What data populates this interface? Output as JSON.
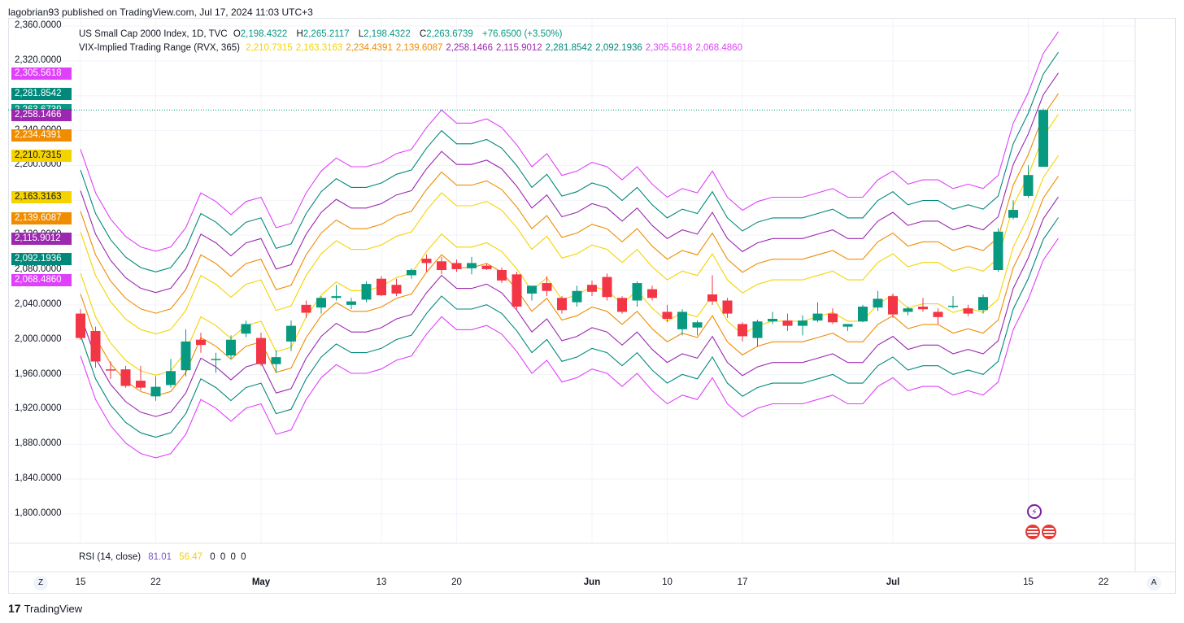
{
  "publisher": "lagobrian93 published on TradingView.com, Jul 17, 2024 11:03 UTC+3",
  "symbol_legend": {
    "name": "US Small Cap 2000 Index, 1D, TVC",
    "o_label": "O",
    "o_value": "2,198.4322",
    "h_label": "H",
    "h_value": "2,265.2117",
    "l_label": "L",
    "l_value": "2,198.4322",
    "c_label": "C",
    "c_value": "2,263.6739",
    "change": "+76.6500 (+3.50%)"
  },
  "indicator_legend": {
    "name": "VIX-Implied Trading Range (RVX, 365)",
    "values": [
      "2,210.7315",
      "2,163.3163",
      "2,234.4391",
      "2,139.6087",
      "2,258.1466",
      "2,115.9012",
      "2,281.8542",
      "2,092.1936",
      "2,305.5618",
      "2,068.4860"
    ],
    "colors": [
      "#f5d300",
      "#f5d300",
      "#ef8c00",
      "#ef8c00",
      "#9c27b0",
      "#9c27b0",
      "#00897b",
      "#00897b",
      "#e040fb",
      "#e040fb"
    ]
  },
  "price_badges": [
    {
      "text": "2,305.5618",
      "value": 2305.5618,
      "color": "#e040fb"
    },
    {
      "text": "2,281.8542",
      "value": 2281.8542,
      "color": "#00897b"
    },
    {
      "text": "2,263.6739",
      "value": 2263.6739,
      "color": "#089981"
    },
    {
      "text": "2,258.1466",
      "value": 2258.1466,
      "color": "#9c27b0"
    },
    {
      "text": "2,234.4391",
      "value": 2234.4391,
      "color": "#ef8c00"
    },
    {
      "text": "2,210.7315",
      "value": 2210.7315,
      "color": "#f5d300"
    },
    {
      "text": "2,163.3163",
      "value": 2163.3163,
      "color": "#f5d300"
    },
    {
      "text": "2,139.6087",
      "value": 2139.6087,
      "color": "#ef8c00"
    },
    {
      "text": "2,115.9012",
      "value": 2115.9012,
      "color": "#9c27b0"
    },
    {
      "text": "2,092.1936",
      "value": 2092.1936,
      "color": "#00897b"
    },
    {
      "text": "2,068.4860",
      "value": 2068.486,
      "color": "#e040fb"
    }
  ],
  "rsi_legend": {
    "name": "RSI (14, close)",
    "rsi_value": "81.01",
    "ma_value": "56.47",
    "zeros": [
      "0",
      "0",
      "0",
      "0"
    ],
    "rsi_color": "#7e57c2",
    "ma_color": "#f5d300"
  },
  "x_axis_labels": [
    {
      "text": "15",
      "bold": false,
      "idx": 0
    },
    {
      "text": "22",
      "bold": false,
      "idx": 5
    },
    {
      "text": "May",
      "bold": true,
      "idx": 12
    },
    {
      "text": "13",
      "bold": false,
      "idx": 20
    },
    {
      "text": "20",
      "bold": false,
      "idx": 25
    },
    {
      "text": "Jun",
      "bold": true,
      "idx": 34
    },
    {
      "text": "10",
      "bold": false,
      "idx": 39
    },
    {
      "text": "17",
      "bold": false,
      "idx": 44
    },
    {
      "text": "Jul",
      "bold": true,
      "idx": 54
    },
    {
      "text": "15",
      "bold": false,
      "idx": 63
    },
    {
      "text": "22",
      "bold": false,
      "idx": 68
    }
  ],
  "corner_buttons": {
    "left": "Z",
    "right": "A"
  },
  "footer": {
    "logo": "17",
    "brand": "TradingView"
  },
  "event_icons": {
    "lightning": "⚡",
    "flag": "US-flag-icon"
  },
  "chart_data": {
    "type": "candlestick",
    "title": "US Small Cap 2000 Index, 1D, TVC",
    "y_ticks": [
      2360,
      2320,
      2280,
      2240,
      2200,
      2160,
      2120,
      2080,
      2040,
      2000,
      1960,
      1920,
      1880,
      1840,
      1800
    ],
    "y_tick_labels": [
      "2,360.0000",
      "2,320.0000",
      "2,280.0000",
      "2,240.0000",
      "2,200.0000",
      "2,160.0000",
      "2,120.0000",
      "2,080.0000",
      "2,040.0000",
      "2,000.0000",
      "1,960.0000",
      "1,920.0000",
      "1,880.0000",
      "1,840.0000",
      "1,800.0000"
    ],
    "ylim": [
      1768,
      2370
    ],
    "x_slots": 72,
    "last_close": 2263.6739,
    "candles": [
      {
        "o": 2030,
        "h": 2035,
        "l": 2000,
        "c": 2002
      },
      {
        "o": 2010,
        "h": 2015,
        "l": 1968,
        "c": 1975
      },
      {
        "o": 1966,
        "h": 1975,
        "l": 1955,
        "c": 1965
      },
      {
        "o": 1966,
        "h": 1970,
        "l": 1945,
        "c": 1947
      },
      {
        "o": 1953,
        "h": 1970,
        "l": 1942,
        "c": 1945
      },
      {
        "o": 1935,
        "h": 1958,
        "l": 1930,
        "c": 1946
      },
      {
        "o": 1948,
        "h": 1978,
        "l": 1945,
        "c": 1964
      },
      {
        "o": 1965,
        "h": 2012,
        "l": 1958,
        "c": 1998
      },
      {
        "o": 2000,
        "h": 2008,
        "l": 1985,
        "c": 1994
      },
      {
        "o": 1978,
        "h": 1985,
        "l": 1962,
        "c": 1978
      },
      {
        "o": 1982,
        "h": 2005,
        "l": 1978,
        "c": 2000
      },
      {
        "o": 2007,
        "h": 2022,
        "l": 2003,
        "c": 2018
      },
      {
        "o": 2002,
        "h": 2008,
        "l": 1970,
        "c": 1972
      },
      {
        "o": 1972,
        "h": 1988,
        "l": 1962,
        "c": 1980
      },
      {
        "o": 1998,
        "h": 2022,
        "l": 1987,
        "c": 2016
      },
      {
        "o": 2040,
        "h": 2045,
        "l": 2025,
        "c": 2031
      },
      {
        "o": 2037,
        "h": 2050,
        "l": 2030,
        "c": 2048
      },
      {
        "o": 2048,
        "h": 2063,
        "l": 2045,
        "c": 2050
      },
      {
        "o": 2040,
        "h": 2048,
        "l": 2035,
        "c": 2044
      },
      {
        "o": 2046,
        "h": 2067,
        "l": 2043,
        "c": 2064
      },
      {
        "o": 2070,
        "h": 2073,
        "l": 2050,
        "c": 2051
      },
      {
        "o": 2063,
        "h": 2070,
        "l": 2050,
        "c": 2053
      },
      {
        "o": 2074,
        "h": 2082,
        "l": 2070,
        "c": 2080
      },
      {
        "o": 2093,
        "h": 2098,
        "l": 2078,
        "c": 2088
      },
      {
        "o": 2090,
        "h": 2095,
        "l": 2075,
        "c": 2080
      },
      {
        "o": 2088,
        "h": 2092,
        "l": 2078,
        "c": 2081
      },
      {
        "o": 2082,
        "h": 2095,
        "l": 2075,
        "c": 2088
      },
      {
        "o": 2085,
        "h": 2087,
        "l": 2080,
        "c": 2081
      },
      {
        "o": 2080,
        "h": 2083,
        "l": 2065,
        "c": 2068
      },
      {
        "o": 2075,
        "h": 2078,
        "l": 2035,
        "c": 2038
      },
      {
        "o": 2053,
        "h": 2060,
        "l": 2045,
        "c": 2062
      },
      {
        "o": 2065,
        "h": 2073,
        "l": 2050,
        "c": 2056
      },
      {
        "o": 2048,
        "h": 2050,
        "l": 2030,
        "c": 2034
      },
      {
        "o": 2043,
        "h": 2062,
        "l": 2038,
        "c": 2056
      },
      {
        "o": 2063,
        "h": 2068,
        "l": 2050,
        "c": 2055
      },
      {
        "o": 2072,
        "h": 2076,
        "l": 2045,
        "c": 2049
      },
      {
        "o": 2048,
        "h": 2050,
        "l": 2030,
        "c": 2032
      },
      {
        "o": 2045,
        "h": 2067,
        "l": 2038,
        "c": 2065
      },
      {
        "o": 2058,
        "h": 2062,
        "l": 2045,
        "c": 2048
      },
      {
        "o": 2032,
        "h": 2040,
        "l": 2020,
        "c": 2024
      },
      {
        "o": 2012,
        "h": 2035,
        "l": 2005,
        "c": 2032
      },
      {
        "o": 2014,
        "h": 2022,
        "l": 2005,
        "c": 2020
      },
      {
        "o": 2052,
        "h": 2074,
        "l": 2040,
        "c": 2044
      },
      {
        "o": 2045,
        "h": 2048,
        "l": 2025,
        "c": 2030
      },
      {
        "o": 2018,
        "h": 2020,
        "l": 1998,
        "c": 2004
      },
      {
        "o": 2002,
        "h": 2023,
        "l": 1992,
        "c": 2021
      },
      {
        "o": 2021,
        "h": 2032,
        "l": 2018,
        "c": 2024
      },
      {
        "o": 2022,
        "h": 2030,
        "l": 2010,
        "c": 2016
      },
      {
        "o": 2016,
        "h": 2028,
        "l": 2005,
        "c": 2022
      },
      {
        "o": 2022,
        "h": 2043,
        "l": 2020,
        "c": 2030
      },
      {
        "o": 2030,
        "h": 2036,
        "l": 2018,
        "c": 2020
      },
      {
        "o": 2015,
        "h": 2018,
        "l": 2010,
        "c": 2018
      },
      {
        "o": 2021,
        "h": 2040,
        "l": 2020,
        "c": 2038
      },
      {
        "o": 2037,
        "h": 2056,
        "l": 2033,
        "c": 2047
      },
      {
        "o": 2050,
        "h": 2053,
        "l": 2025,
        "c": 2029
      },
      {
        "o": 2032,
        "h": 2038,
        "l": 2028,
        "c": 2036
      },
      {
        "o": 2038,
        "h": 2048,
        "l": 2032,
        "c": 2035
      },
      {
        "o": 2032,
        "h": 2036,
        "l": 2018,
        "c": 2026
      },
      {
        "o": 2038,
        "h": 2050,
        "l": 2036,
        "c": 2039
      },
      {
        "o": 2036,
        "h": 2040,
        "l": 2027,
        "c": 2030
      },
      {
        "o": 2034,
        "h": 2052,
        "l": 2030,
        "c": 2049
      },
      {
        "o": 2080,
        "h": 2128,
        "l": 2078,
        "c": 2124
      },
      {
        "o": 2140,
        "h": 2160,
        "l": 2138,
        "c": 2149
      },
      {
        "o": 2165,
        "h": 2200,
        "l": 2163,
        "c": 2189
      },
      {
        "o": 2198.4322,
        "h": 2265.2117,
        "l": 2198.4322,
        "c": 2263.6739
      }
    ],
    "range_mid": [
      2100,
      2050,
      2020,
      2000,
      1988,
      1983,
      1988,
      2010,
      2050,
      2040,
      2025,
      2040,
      2045,
      2010,
      2015,
      2050,
      2075,
      2090,
      2080,
      2080,
      2085,
      2095,
      2100,
      2125,
      2145,
      2130,
      2130,
      2135,
      2125,
      2105,
      2080,
      2095,
      2070,
      2075,
      2085,
      2080,
      2065,
      2080,
      2060,
      2045,
      2055,
      2050,
      2075,
      2045,
      2030,
      2040,
      2045,
      2045,
      2045,
      2050,
      2055,
      2045,
      2045,
      2065,
      2075,
      2060,
      2065,
      2065,
      2055,
      2060,
      2055,
      2070,
      2130,
      2165,
      2210,
      2235
    ],
    "range_series": [
      {
        "k": 1,
        "color": "#f5d300"
      },
      {
        "k": -1,
        "color": "#f5d300"
      },
      {
        "k": 2,
        "color": "#ef8c00"
      },
      {
        "k": -2,
        "color": "#ef8c00"
      },
      {
        "k": 3,
        "color": "#9c27b0"
      },
      {
        "k": -3,
        "color": "#9c27b0"
      },
      {
        "k": 4,
        "color": "#00897b"
      },
      {
        "k": -4,
        "color": "#00897b"
      },
      {
        "k": 5,
        "color": "#e040fb"
      },
      {
        "k": -5,
        "color": "#e040fb"
      }
    ],
    "range_step": 23.71,
    "up_color": "#089981",
    "down_color": "#f23645"
  }
}
